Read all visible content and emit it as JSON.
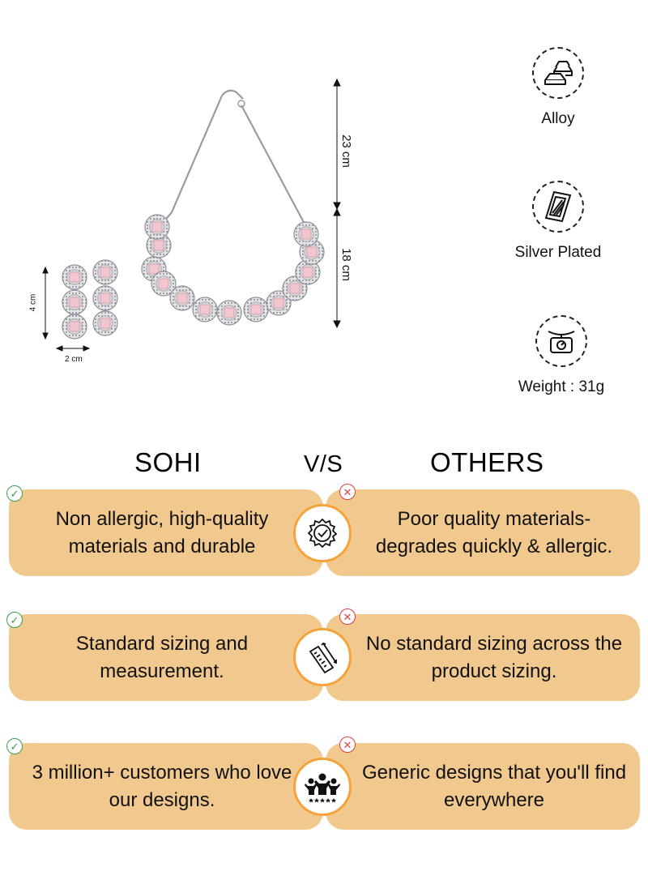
{
  "dimensions": {
    "necklace_top": "23 cm",
    "necklace_bottom": "18 cm",
    "earring_height": "4 cm",
    "earring_width": "2 cm"
  },
  "features": [
    {
      "label": "Alloy",
      "icon": "metal-bars-icon"
    },
    {
      "label": "Silver Plated",
      "icon": "plated-sheet-icon"
    },
    {
      "label": "Weight : 31g",
      "icon": "weighing-scale-icon"
    }
  ],
  "comparison": {
    "brand": "SOHI",
    "versus": "V/S",
    "others": "OTHERS",
    "rows": [
      {
        "sohi": "Non allergic, high-quality materials and durable",
        "others": "Poor quality materials-degrades quickly & allergic.",
        "icon": "quality-badge-icon"
      },
      {
        "sohi": "Standard sizing and measurement.",
        "others": "No standard sizing across the product sizing.",
        "icon": "ruler-icon"
      },
      {
        "sohi": "3 million+ customers who love our designs.",
        "others": "Generic designs that you'll find everywhere",
        "icon": "happy-customers-icon"
      }
    ]
  },
  "colors": {
    "card": "#f1c98f",
    "icon_ring": "#f5a33a",
    "check": "#3aa04a",
    "cross": "#d94040",
    "stone": "#f2c6cf"
  }
}
